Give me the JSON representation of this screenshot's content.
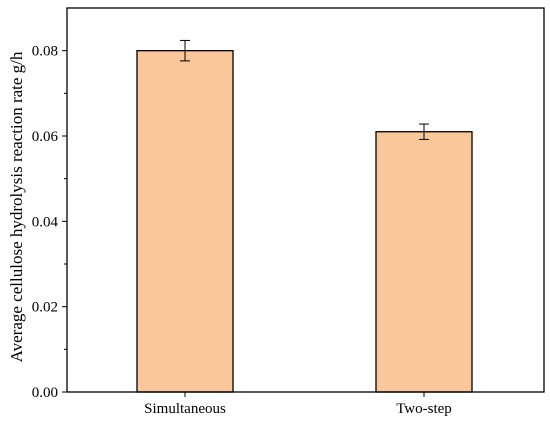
{
  "chart_data": {
    "type": "bar",
    "categories": [
      "Simultaneous",
      "Two-step"
    ],
    "values": [
      0.08,
      0.061
    ],
    "errors": [
      0.0024,
      0.0018
    ],
    "title": "",
    "xlabel": "",
    "ylabel": "Average cellulose hydrolysis reaction rate g/h",
    "ylim": [
      0.0,
      0.09
    ],
    "yticks": [
      0.0,
      0.02,
      0.04,
      0.06,
      0.08
    ],
    "ytick_labels": [
      "0.00",
      "0.02",
      "0.04",
      "0.06",
      "0.08"
    ],
    "grid": false,
    "legend": "none",
    "colors": {
      "bar_fill": "#F9C799",
      "bar_stroke": "#000000",
      "axis": "#000000"
    }
  }
}
